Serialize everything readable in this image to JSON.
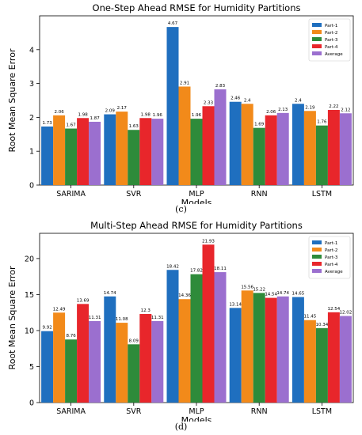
{
  "chart_data": [
    {
      "type": "bar",
      "caption": "(c)",
      "title": "One-Step Ahead RMSE for Humidity Partitions",
      "xlabel": "Models",
      "ylabel": "Root Mean Square Error",
      "categories": [
        "SARIMA",
        "SVR",
        "MLP",
        "RNN",
        "LSTM"
      ],
      "ylim": [
        0,
        5.0
      ],
      "yticks": [
        0,
        1,
        2,
        3,
        4
      ],
      "grid": false,
      "legend_position": "top-right",
      "series": [
        {
          "name": "Part-1",
          "color": "#1f6fbf",
          "values": [
            1.73,
            2.09,
            4.67,
            2.46,
            2.4
          ]
        },
        {
          "name": "Part-2",
          "color": "#f28a1a",
          "values": [
            2.06,
            2.17,
            2.91,
            2.4,
            2.19
          ]
        },
        {
          "name": "Part-3",
          "color": "#2e8b3a",
          "values": [
            1.67,
            1.63,
            1.96,
            1.69,
            1.76
          ]
        },
        {
          "name": "Part-4",
          "color": "#e8262b",
          "values": [
            1.98,
            1.98,
            2.33,
            2.06,
            2.22
          ]
        },
        {
          "name": "Average",
          "color": "#9b6fcf",
          "values": [
            1.87,
            1.96,
            2.83,
            2.13,
            2.12
          ]
        }
      ],
      "value_labels": [
        [
          "1.73",
          "2.06",
          "1.67",
          "1.98",
          "1.87"
        ],
        [
          "2.09",
          "2.17",
          "1.63",
          "1.98",
          "1.96"
        ],
        [
          "4.67",
          "2.91",
          "1.96",
          "2.33",
          "2.83"
        ],
        [
          "2.46",
          "2.4",
          "1.69",
          "2.06",
          "2.13"
        ],
        [
          "2.4",
          "2.19",
          "1.76",
          "2.22",
          "2.12"
        ]
      ]
    },
    {
      "type": "bar",
      "caption": "(d)",
      "title": "Multi-Step Ahead RMSE for Humidity Partitions",
      "xlabel": "Models",
      "ylabel": "Root Mean Square Error",
      "categories": [
        "SARIMA",
        "SVR",
        "MLP",
        "RNN",
        "LSTM"
      ],
      "ylim": [
        0,
        23.5
      ],
      "yticks": [
        0,
        5,
        10,
        15,
        20
      ],
      "grid": false,
      "legend_position": "top-right",
      "series": [
        {
          "name": "Part-1",
          "color": "#1f6fbf",
          "values": [
            9.92,
            14.74,
            18.42,
            13.14,
            14.65
          ]
        },
        {
          "name": "Part-2",
          "color": "#f28a1a",
          "values": [
            12.49,
            11.08,
            14.36,
            15.56,
            11.45
          ]
        },
        {
          "name": "Part-3",
          "color": "#2e8b3a",
          "values": [
            8.76,
            8.09,
            17.82,
            15.22,
            10.34
          ]
        },
        {
          "name": "Part-4",
          "color": "#e8262b",
          "values": [
            13.69,
            12.3,
            21.93,
            14.54,
            12.54
          ]
        },
        {
          "name": "Average",
          "color": "#9b6fcf",
          "values": [
            11.31,
            11.31,
            18.11,
            14.74,
            12.02
          ]
        }
      ],
      "value_labels": [
        [
          "9.92",
          "12.49",
          "8.76",
          "13.69",
          "11.31"
        ],
        [
          "14.74",
          "11.08",
          "8.09",
          "12.3",
          "11.31"
        ],
        [
          "18.42",
          "14.36",
          "17.82",
          "21.93",
          "18.11"
        ],
        [
          "13.14",
          "15.56",
          "15.22",
          "14.54",
          "14.74"
        ],
        [
          "14.65",
          "11.45",
          "10.34",
          "12.54",
          "12.02"
        ]
      ]
    }
  ]
}
